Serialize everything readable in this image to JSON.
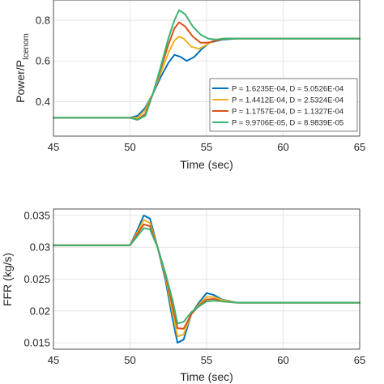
{
  "chart_data": [
    {
      "type": "line",
      "xlabel": "Time (sec)",
      "ylabel": "Power/P",
      "ylabel_sub": "Icenom",
      "xlim": [
        45,
        65
      ],
      "ylim": [
        0.23,
        0.9
      ],
      "xticks": [
        45,
        50,
        55,
        60,
        65
      ],
      "yticks": [
        0.4,
        0.6,
        0.8
      ],
      "ytick_labels": [
        "0.4",
        "0.6",
        "0.8"
      ],
      "grid": true,
      "legend_position": "lower-right",
      "series": [
        {
          "name": "P = 1.6235E-04, D = 5.0526E-04",
          "color": "#0072BD",
          "x": [
            45,
            50,
            50.5,
            51,
            51.5,
            52,
            52.5,
            52.9,
            53.3,
            53.7,
            54.2,
            54.7,
            55.2,
            56,
            57,
            58,
            60,
            65
          ],
          "y": [
            0.32,
            0.32,
            0.33,
            0.37,
            0.44,
            0.52,
            0.59,
            0.63,
            0.62,
            0.6,
            0.62,
            0.66,
            0.69,
            0.705,
            0.71,
            0.71,
            0.71,
            0.71
          ]
        },
        {
          "name": "P = 1.4412E-04, D = 2.5324E-04",
          "color": "#EDB120",
          "x": [
            45,
            50,
            50.5,
            51,
            51.5,
            52,
            52.5,
            52.9,
            53.2,
            53.5,
            54,
            54.5,
            55,
            55.5,
            56,
            57,
            58,
            60,
            65
          ],
          "y": [
            0.32,
            0.32,
            0.32,
            0.36,
            0.44,
            0.54,
            0.64,
            0.7,
            0.72,
            0.71,
            0.67,
            0.66,
            0.68,
            0.7,
            0.71,
            0.71,
            0.71,
            0.71,
            0.71
          ]
        },
        {
          "name": "P = 1.1757E-04, D = 1.1327E-04",
          "color": "#D95319",
          "x": [
            45,
            50,
            50.5,
            51,
            51.5,
            52,
            52.5,
            52.9,
            53.2,
            53.6,
            54.1,
            54.6,
            55.1,
            55.6,
            56.2,
            57,
            58,
            60,
            65
          ],
          "y": [
            0.32,
            0.32,
            0.31,
            0.34,
            0.44,
            0.56,
            0.68,
            0.76,
            0.79,
            0.77,
            0.72,
            0.69,
            0.69,
            0.7,
            0.71,
            0.71,
            0.71,
            0.71,
            0.71
          ]
        },
        {
          "name": "P = 9.9706E-05, D = 8.9839E-05",
          "color": "#3CB371",
          "x": [
            45,
            50,
            50.5,
            51,
            51.5,
            52,
            52.5,
            52.9,
            53.2,
            53.6,
            54.1,
            54.6,
            55.1,
            55.6,
            56.2,
            57,
            58,
            60,
            65
          ],
          "y": [
            0.32,
            0.32,
            0.31,
            0.33,
            0.44,
            0.57,
            0.71,
            0.8,
            0.85,
            0.83,
            0.77,
            0.73,
            0.71,
            0.705,
            0.71,
            0.71,
            0.71,
            0.71,
            0.71
          ]
        }
      ]
    },
    {
      "type": "line",
      "xlabel": "Time (sec)",
      "ylabel": "FFR (kg/s)",
      "xlim": [
        45,
        65
      ],
      "ylim": [
        0.014,
        0.036
      ],
      "xticks": [
        45,
        50,
        55,
        60,
        65
      ],
      "yticks": [
        0.015,
        0.02,
        0.025,
        0.03,
        0.035
      ],
      "ytick_labels": [
        "0.015",
        "0.02",
        "0.025",
        "0.03",
        "0.035"
      ],
      "grid": true,
      "series": [
        {
          "name": "P = 1.6235E-04, D = 5.0526E-04",
          "color": "#0072BD",
          "x": [
            45,
            50,
            50.4,
            50.9,
            51.3,
            51.8,
            52.3,
            52.8,
            53.1,
            53.5,
            54,
            54.5,
            55,
            55.5,
            56,
            57,
            58,
            60,
            65
          ],
          "y": [
            0.0303,
            0.0303,
            0.0323,
            0.035,
            0.0345,
            0.03,
            0.025,
            0.0185,
            0.015,
            0.0155,
            0.0195,
            0.0213,
            0.0228,
            0.0225,
            0.0218,
            0.0213,
            0.0213,
            0.0213,
            0.0213
          ]
        },
        {
          "name": "P = 1.4412E-04, D = 2.5324E-04",
          "color": "#EDB120",
          "x": [
            45,
            50,
            50.4,
            50.9,
            51.3,
            51.8,
            52.3,
            52.8,
            53.1,
            53.5,
            54,
            54.5,
            55,
            55.5,
            56,
            57,
            58,
            60,
            65
          ],
          "y": [
            0.0303,
            0.0303,
            0.032,
            0.0343,
            0.0338,
            0.03,
            0.0255,
            0.0195,
            0.016,
            0.0163,
            0.0195,
            0.021,
            0.0222,
            0.0222,
            0.0217,
            0.0213,
            0.0213,
            0.0213,
            0.0213
          ]
        },
        {
          "name": "P = 1.1757E-04, D = 1.1327E-04",
          "color": "#D95319",
          "x": [
            45,
            50,
            50.4,
            50.9,
            51.3,
            51.8,
            52.3,
            52.8,
            53.1,
            53.5,
            54,
            54.5,
            55,
            55.5,
            56,
            57,
            58,
            60,
            65
          ],
          "y": [
            0.0303,
            0.0303,
            0.0318,
            0.0336,
            0.0333,
            0.03,
            0.0258,
            0.0205,
            0.0173,
            0.0172,
            0.0195,
            0.0208,
            0.0218,
            0.0219,
            0.0215,
            0.0213,
            0.0213,
            0.0213,
            0.0213
          ]
        },
        {
          "name": "P = 9.9706E-05, D = 8.9839E-05",
          "color": "#3CB371",
          "x": [
            45,
            50,
            50.4,
            50.9,
            51.3,
            51.8,
            52.3,
            52.8,
            53.1,
            53.5,
            54,
            54.5,
            55,
            55.5,
            56,
            57,
            58,
            60,
            65
          ],
          "y": [
            0.0303,
            0.0303,
            0.0315,
            0.033,
            0.0328,
            0.03,
            0.026,
            0.0215,
            0.018,
            0.0183,
            0.0198,
            0.0207,
            0.0215,
            0.0216,
            0.0215,
            0.0213,
            0.0213,
            0.0213,
            0.0213
          ]
        }
      ]
    }
  ]
}
